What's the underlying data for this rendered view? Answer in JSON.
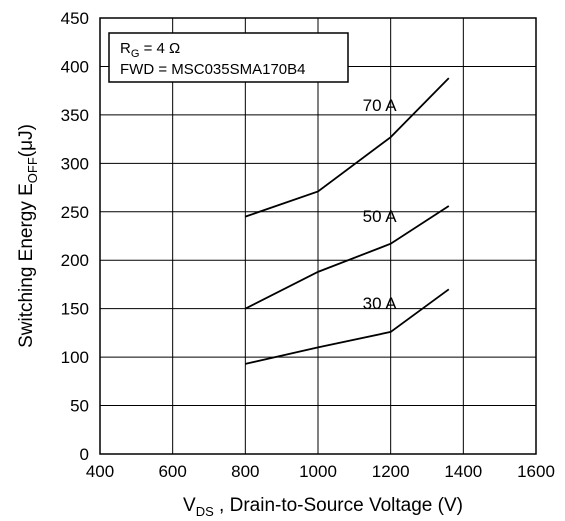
{
  "chart_data": {
    "type": "line",
    "title": "",
    "xlabel": {
      "main": "V",
      "sub": "DS",
      "rest": " , Drain-to-Source Voltage (V)"
    },
    "ylabel": {
      "main": "Switching Energy E",
      "sub": "OFF",
      "rest": "(μJ)"
    },
    "xlim": [
      400,
      1600
    ],
    "ylim": [
      0,
      450
    ],
    "xticks": [
      400,
      600,
      800,
      1000,
      1200,
      1400,
      1600
    ],
    "yticks": [
      0,
      50,
      100,
      150,
      200,
      250,
      300,
      350,
      400,
      450
    ],
    "grid": true,
    "legend_box": {
      "line1": {
        "main": "R",
        "sub": "G",
        "rest": " = 4 Ω"
      },
      "line2": "FWD = MSC035SMA170B4"
    },
    "series": [
      {
        "name": "70 A",
        "x": [
          800,
          1000,
          1200,
          1360
        ],
        "y": [
          245,
          271,
          327,
          388
        ]
      },
      {
        "name": "50 A",
        "x": [
          800,
          1000,
          1200,
          1360
        ],
        "y": [
          150,
          188,
          217,
          256
        ]
      },
      {
        "name": "30 A",
        "x": [
          800,
          1000,
          1200,
          1360
        ],
        "y": [
          93,
          110,
          126,
          170
        ]
      }
    ]
  }
}
